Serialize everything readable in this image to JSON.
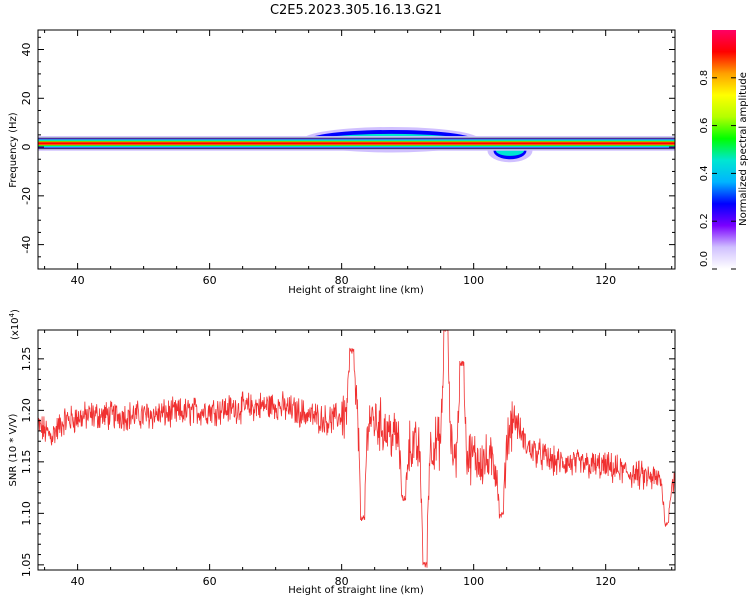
{
  "title": "C2E5.2023.305.16.13.G21",
  "chart_data": [
    {
      "type": "heatmap",
      "title": "",
      "xlabel": "Height of straight line (km)",
      "ylabel": "Frequency (Hz)",
      "xlim": [
        34,
        130.5
      ],
      "ylim": [
        -50,
        48
      ],
      "xticks": [
        40,
        60,
        80,
        100,
        120
      ],
      "yticks": [
        -40,
        -20,
        0,
        20,
        40
      ],
      "x_tick_labels": [
        "40",
        "60",
        "80",
        "100",
        "120"
      ],
      "y_tick_labels": [
        "-40",
        "-20",
        "0",
        "20",
        "40"
      ],
      "colorbar": {
        "label": "Normalized spectral amplitude",
        "range": [
          0,
          1
        ],
        "ticks": [
          0.0,
          0.2,
          0.4,
          0.6,
          0.8
        ],
        "tick_labels": [
          "0.0",
          "0.2",
          "0.4",
          "0.6",
          "0.8"
        ],
        "colors": [
          "#ffffff",
          "#d0c0ff",
          "#7a00ff",
          "#0000ff",
          "#00b4ff",
          "#00e6d2",
          "#00ff00",
          "#b4ff00",
          "#ffff00",
          "#ffa000",
          "#ff0000",
          "#ff0064"
        ]
      },
      "band": {
        "center_hz": 1.5,
        "core_halfwidth_hz": 0.8,
        "outer_halfwidth_hz": 2.2,
        "wide_segments": [
          {
            "x": [
              75,
              100
            ],
            "halfwidth_hz": 4,
            "peak_hz": 3
          },
          {
            "x": [
              103,
              108
            ],
            "halfwidth_hz": 3.5,
            "peak_hz": -1.5
          }
        ]
      },
      "grid": false
    },
    {
      "type": "line",
      "title": "",
      "xlabel": "Height of straight line (km)",
      "ylabel": "SNR (10 * V/V)",
      "y_multiplier_label": "(x10",
      "y_multiplier_exp": "4",
      "y_multiplier_close": ")",
      "xlim": [
        34,
        130.5
      ],
      "ylim": [
        1.045,
        1.278
      ],
      "xticks": [
        40,
        60,
        80,
        100,
        120
      ],
      "yticks": [
        1.05,
        1.1,
        1.15,
        1.2,
        1.25
      ],
      "x_tick_labels": [
        "40",
        "60",
        "80",
        "100",
        "120"
      ],
      "y_tick_labels": [
        "1.05",
        "1.10",
        "1.15",
        "1.20",
        "1.25"
      ],
      "series_color": "#f03030",
      "anchors": {
        "x": [
          34,
          36,
          38,
          42,
          50,
          60,
          70,
          78,
          82,
          85,
          88,
          92,
          95,
          98,
          100,
          102,
          104,
          106,
          108,
          112,
          120,
          126,
          130.5
        ],
        "y": [
          1.185,
          1.175,
          1.19,
          1.195,
          1.195,
          1.2,
          1.205,
          1.19,
          1.2,
          1.19,
          1.175,
          1.16,
          1.17,
          1.155,
          1.155,
          1.15,
          1.145,
          1.195,
          1.165,
          1.15,
          1.145,
          1.135,
          1.13
        ]
      },
      "spikes": [
        {
          "x": 83.2,
          "y": 1.095
        },
        {
          "x": 92.6,
          "y": 1.05
        },
        {
          "x": 95.8,
          "y": 1.278
        },
        {
          "x": 98.2,
          "y": 1.245
        },
        {
          "x": 104.2,
          "y": 1.098
        },
        {
          "x": 89.4,
          "y": 1.115
        },
        {
          "x": 81.5,
          "y": 1.258
        },
        {
          "x": 129.2,
          "y": 1.09
        }
      ],
      "noise_amplitude": 0.012,
      "grid": false
    }
  ]
}
